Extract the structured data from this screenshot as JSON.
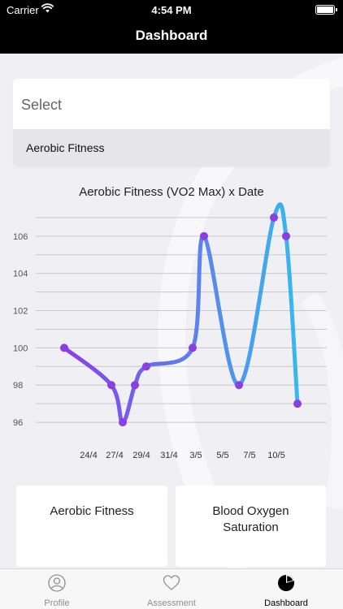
{
  "status_bar": {
    "carrier": "Carrier",
    "time": "4:54 PM"
  },
  "nav": {
    "title": "Dashboard"
  },
  "select": {
    "placeholder": "Select",
    "selected_option": "Aerobic Fitness"
  },
  "chart_data": {
    "type": "line",
    "title": "Aerobic Fitness (VO2 Max) x Date",
    "x_ticks": [
      "24/4",
      "27/4",
      "29/4",
      "31/4",
      "3/5",
      "5/5",
      "7/5",
      "10/5"
    ],
    "y_ticks": [
      96,
      98,
      100,
      102,
      104,
      106
    ],
    "ylim": [
      95,
      108
    ],
    "grid": true,
    "series": [
      {
        "values": [
          100,
          98,
          96,
          98,
          99,
          100,
          106,
          98,
          107,
          106,
          97
        ]
      }
    ],
    "colors": {
      "start": "#8a3de8",
      "end": "#38b8ee",
      "point": "#8b3fe0"
    }
  },
  "cards": [
    {
      "title": "Aerobic Fitness"
    },
    {
      "title": "Blood Oxygen Saturation"
    }
  ],
  "tabs": [
    {
      "label": "Profile",
      "icon": "profile-icon"
    },
    {
      "label": "Assessment",
      "icon": "heart-icon"
    },
    {
      "label": "Dashboard",
      "icon": "pie-chart-icon"
    }
  ]
}
